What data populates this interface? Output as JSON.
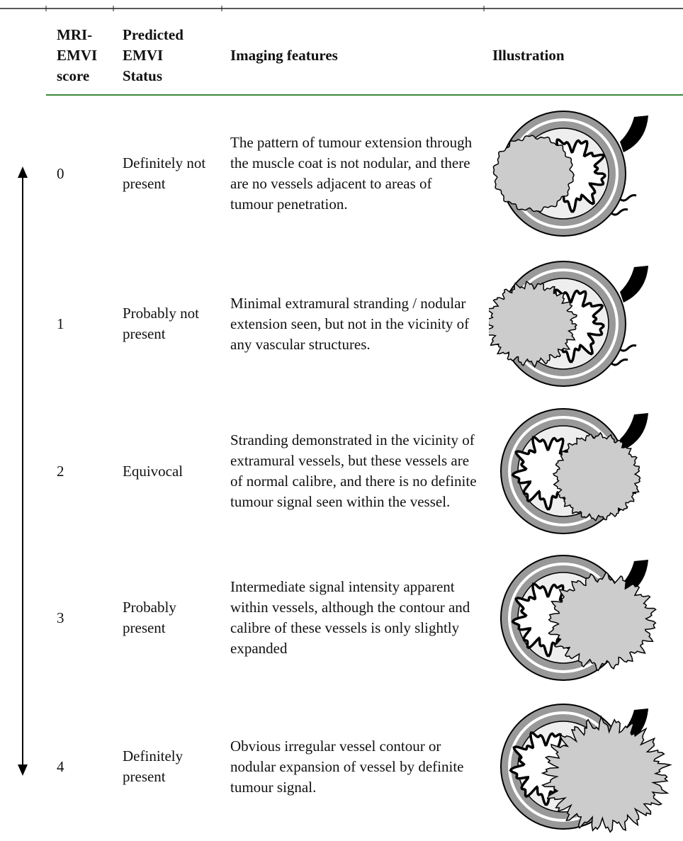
{
  "table": {
    "header": [
      "MRI-EMVI score",
      "Predicted EMVI Status",
      "Imaging features",
      "Illustration"
    ],
    "rows": [
      [
        "0",
        "Definitely not present",
        "The pattern of tumour extension through the muscle coat is not nodular, and there are no vessels adjacent to areas of tumour penetration."
      ],
      [
        "1",
        "Probably not present",
        "Minimal extramural stranding / nodular extension seen, but not in the vicinity of any vascular structures."
      ],
      [
        "2",
        "Equivocal",
        "Stranding demonstrated in the vicinity of extramural vessels, but these vessels are of normal calibre, and there is no definite tumour signal seen within the vessel."
      ],
      [
        "3",
        "Probably present",
        "Intermediate signal intensity apparent within vessels, although the contour and calibre of these vessels is only slightly expanded"
      ],
      [
        "4",
        "Definitely present",
        "Obvious irregular vessel contour or nodular expansion of vessel by definite tumour signal."
      ]
    ]
  }
}
